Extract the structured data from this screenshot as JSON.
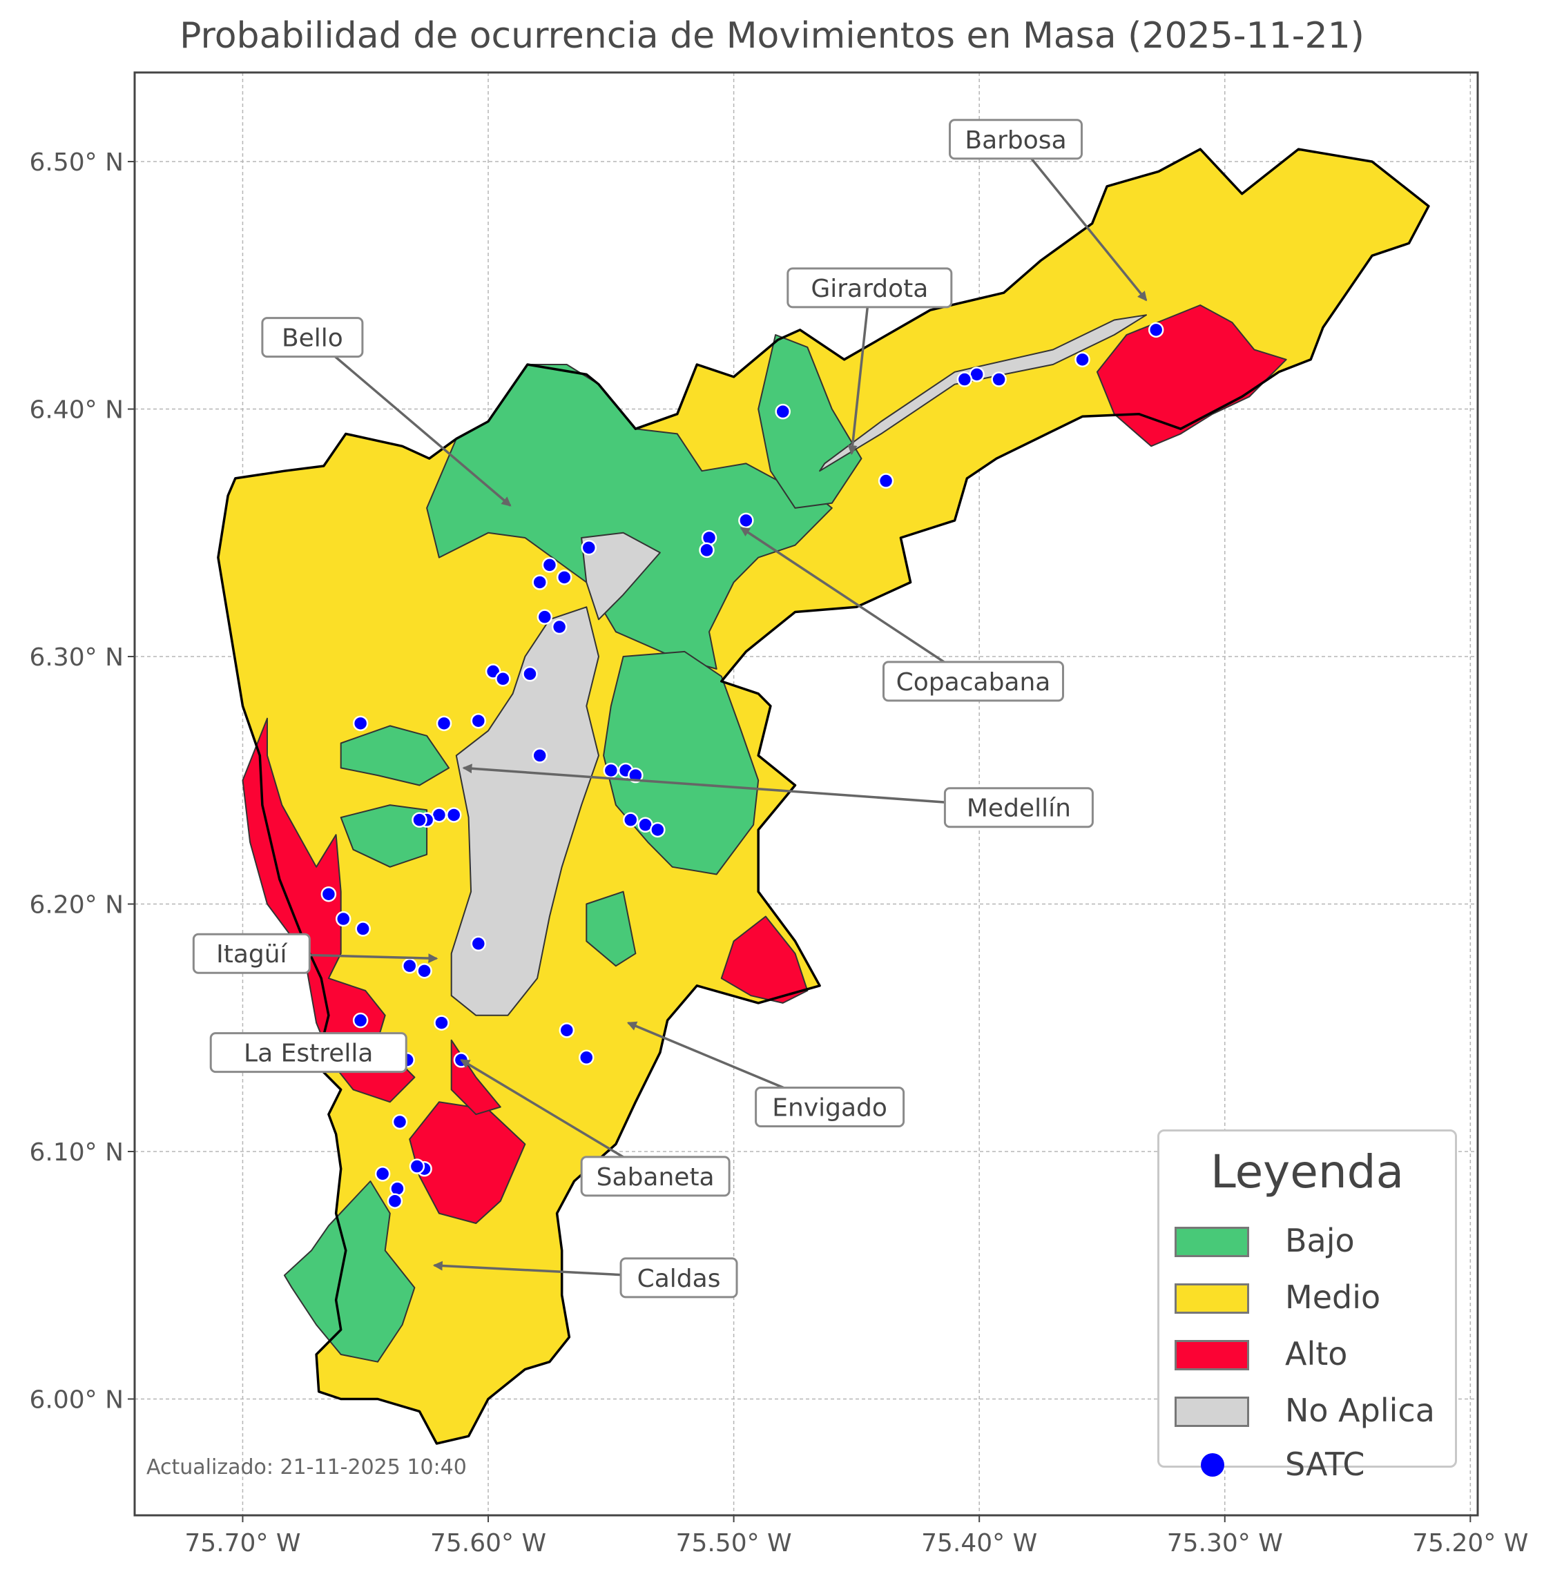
{
  "title": "Probabilidad de ocurrencia de Movimientos en Masa (2025-11-21)",
  "axes": {
    "x_ticks": [
      "75.70° W",
      "75.60° W",
      "75.50° W",
      "75.40° W",
      "75.30° W",
      "75.20° W"
    ],
    "y_ticks": [
      "6.50° N",
      "6.40° N",
      "6.30° N",
      "6.20° N",
      "6.10° N",
      "6.00° N"
    ],
    "lon_range": [
      -75.744,
      -75.197
    ],
    "lat_range": [
      5.953,
      6.536
    ],
    "grid": true
  },
  "colors": {
    "bajo": "#48c978",
    "medio": "#fbdf27",
    "alto": "#fb0334",
    "no_aplica": "#d3d3d3",
    "satc": "#0000ff"
  },
  "municipalities": [
    {
      "name": "Barbosa",
      "label_lon": -75.412,
      "label_lat": 6.509,
      "arrow_lon": -75.332,
      "arrow_lat": 6.444
    },
    {
      "name": "Girardota",
      "label_lon": -75.478,
      "label_lat": 6.449,
      "arrow_lon": -75.452,
      "arrow_lat": 6.382
    },
    {
      "name": "Bello",
      "label_lon": -75.692,
      "label_lat": 6.429,
      "arrow_lon": -75.591,
      "arrow_lat": 6.361
    },
    {
      "name": "Copacabana",
      "label_lon": -75.439,
      "label_lat": 6.29,
      "arrow_lon": -75.497,
      "arrow_lat": 6.352
    },
    {
      "name": "Medellín",
      "label_lon": -75.414,
      "label_lat": 6.239,
      "arrow_lon": -75.61,
      "arrow_lat": 6.255
    },
    {
      "name": "Itagüí",
      "label_lon": -75.72,
      "label_lat": 6.18,
      "arrow_lon": -75.621,
      "arrow_lat": 6.178
    },
    {
      "name": "La Estrella",
      "label_lon": -75.713,
      "label_lat": 6.14,
      "arrow_lon": -75.64,
      "arrow_lat": 6.138
    },
    {
      "name": "Envigado",
      "label_lon": -75.491,
      "label_lat": 6.118,
      "arrow_lon": -75.543,
      "arrow_lat": 6.152
    },
    {
      "name": "Sabaneta",
      "label_lon": -75.562,
      "label_lat": 6.09,
      "arrow_lon": -75.611,
      "arrow_lat": 6.137
    },
    {
      "name": "Caldas",
      "label_lon": -75.546,
      "label_lat": 6.049,
      "arrow_lon": -75.622,
      "arrow_lat": 6.054
    }
  ],
  "satc_stations": [
    [
      -75.328,
      6.432
    ],
    [
      -75.358,
      6.42
    ],
    [
      -75.392,
      6.412
    ],
    [
      -75.401,
      6.414
    ],
    [
      -75.406,
      6.412
    ],
    [
      -75.48,
      6.399
    ],
    [
      -75.438,
      6.371
    ],
    [
      -75.495,
      6.355
    ],
    [
      -75.51,
      6.348
    ],
    [
      -75.511,
      6.343
    ],
    [
      -75.559,
      6.344
    ],
    [
      -75.569,
      6.332
    ],
    [
      -75.579,
      6.33
    ],
    [
      -75.575,
      6.337
    ],
    [
      -75.577,
      6.316
    ],
    [
      -75.571,
      6.312
    ],
    [
      -75.598,
      6.294
    ],
    [
      -75.594,
      6.291
    ],
    [
      -75.583,
      6.293
    ],
    [
      -75.652,
      6.273
    ],
    [
      -75.618,
      6.273
    ],
    [
      -75.604,
      6.274
    ],
    [
      -75.579,
      6.26
    ],
    [
      -75.55,
      6.254
    ],
    [
      -75.544,
      6.254
    ],
    [
      -75.54,
      6.252
    ],
    [
      -75.542,
      6.234
    ],
    [
      -75.536,
      6.232
    ],
    [
      -75.531,
      6.23
    ],
    [
      -75.614,
      6.236
    ],
    [
      -75.62,
      6.236
    ],
    [
      -75.625,
      6.234
    ],
    [
      -75.628,
      6.234
    ],
    [
      -75.665,
      6.204
    ],
    [
      -75.659,
      6.194
    ],
    [
      -75.651,
      6.19
    ],
    [
      -75.604,
      6.184
    ],
    [
      -75.632,
      6.175
    ],
    [
      -75.626,
      6.173
    ],
    [
      -75.652,
      6.153
    ],
    [
      -75.619,
      6.152
    ],
    [
      -75.568,
      6.149
    ],
    [
      -75.56,
      6.138
    ],
    [
      -75.611,
      6.137
    ],
    [
      -75.633,
      6.137
    ],
    [
      -75.636,
      6.112
    ],
    [
      -75.643,
      6.091
    ],
    [
      -75.626,
      6.093
    ],
    [
      -75.629,
      6.094
    ],
    [
      -75.637,
      6.085
    ],
    [
      -75.638,
      6.08
    ]
  ],
  "legend": {
    "title": "Leyenda",
    "items": [
      {
        "label": "Bajo",
        "kind": "swatch",
        "color": "#48c978"
      },
      {
        "label": "Medio",
        "kind": "swatch",
        "color": "#fbdf27"
      },
      {
        "label": "Alto",
        "kind": "swatch",
        "color": "#fb0334"
      },
      {
        "label": "No Aplica",
        "kind": "swatch",
        "color": "#d3d3d3"
      },
      {
        "label": "SATC",
        "kind": "dot",
        "color": "#0000ff"
      }
    ]
  },
  "footer": "Actualizado: 21-11-2025 10:40"
}
